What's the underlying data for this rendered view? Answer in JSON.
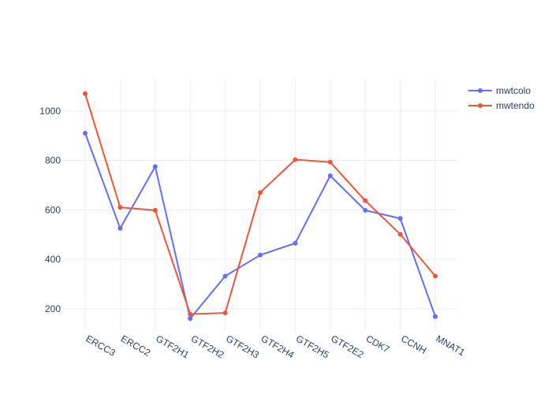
{
  "chart_data": {
    "type": "line",
    "categories": [
      "ERCC3",
      "ERCC2",
      "GTF2H1",
      "GTF2H2",
      "GTF2H3",
      "GTF2H4",
      "GTF2H5",
      "GTF2E2",
      "CDK7",
      "CCNH",
      "MNAT1"
    ],
    "series": [
      {
        "name": "mwtcolo",
        "color": "#636efa",
        "values": [
          910,
          525,
          775,
          160,
          332,
          417,
          465,
          738,
          598,
          565,
          168
        ]
      },
      {
        "name": "mwtendo",
        "color": "#ef553b",
        "values": [
          1070,
          610,
          598,
          178,
          183,
          670,
          803,
          793,
          637,
          501,
          332
        ]
      }
    ],
    "title": "",
    "xlabel": "",
    "ylabel": "",
    "ylim": [
      110,
      1130
    ],
    "yticks": [
      200,
      400,
      600,
      800,
      1000
    ],
    "xtick_angle": 30,
    "grid": true,
    "legend": "top-right"
  }
}
